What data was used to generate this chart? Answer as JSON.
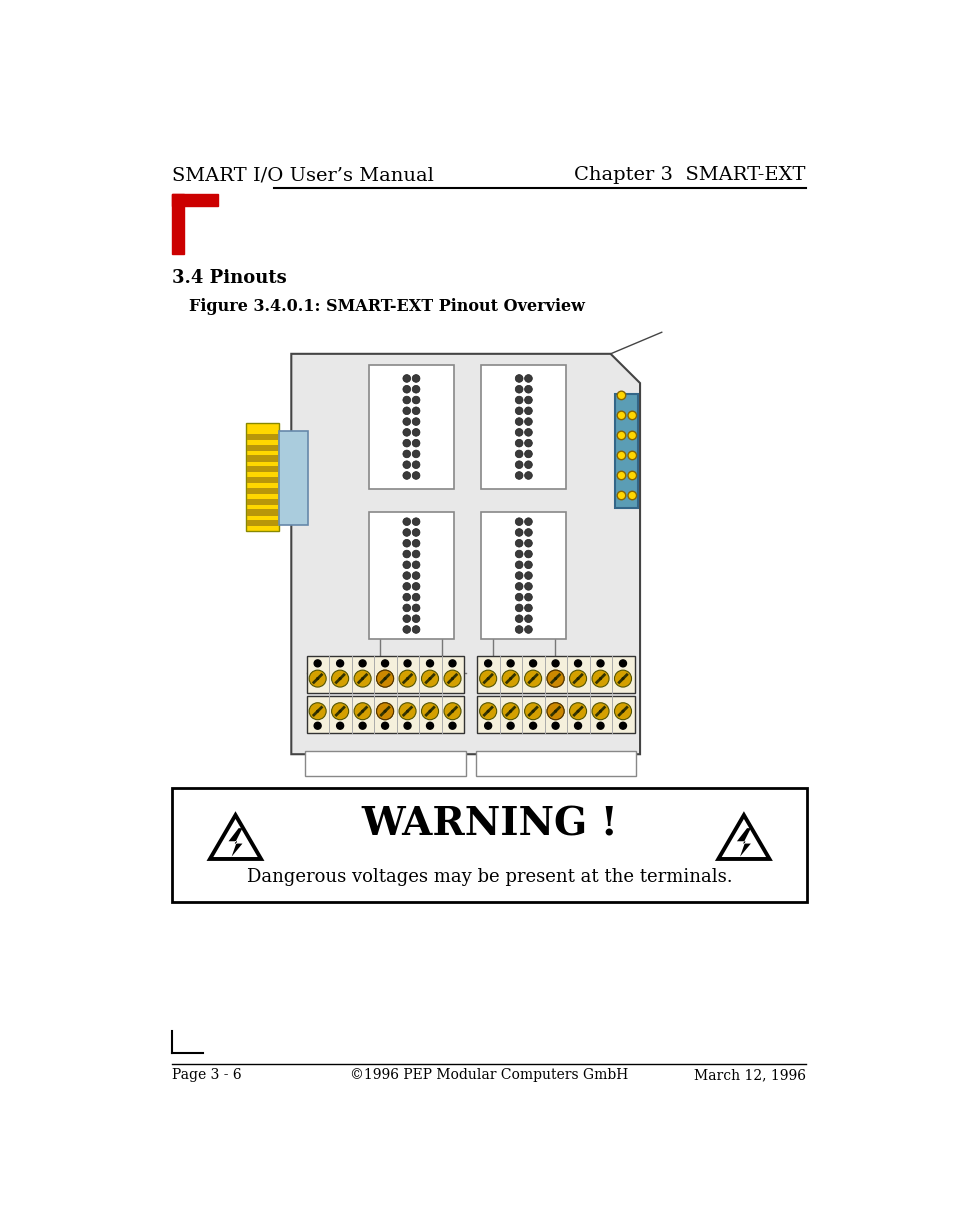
{
  "page_title_left": "SMART I/O User’s Manual",
  "page_title_right": "Chapter 3  SMART-EXT",
  "section_title": "3.4 Pinouts",
  "figure_title": "Figure 3.4.0.1: SMART-EXT Pinout Overview",
  "warning_title": "WARNING !",
  "warning_text": "Dangerous voltages may be present at the terminals.",
  "footer_left": "Page 3 - 6",
  "footer_center": "©1996 PEP Modular Computers GmbH",
  "footer_right": "March 12, 1996",
  "bg_color": "#ffffff",
  "board_color": "#e8e8e8",
  "board_border": "#444444",
  "yellow_color": "#FFD700",
  "yellow_stripe": "#b8960a",
  "light_blue": "#aaccdd",
  "teal_conn": "#5599aa",
  "screw_color": "#d4a000",
  "red_logo": "#cc0000"
}
